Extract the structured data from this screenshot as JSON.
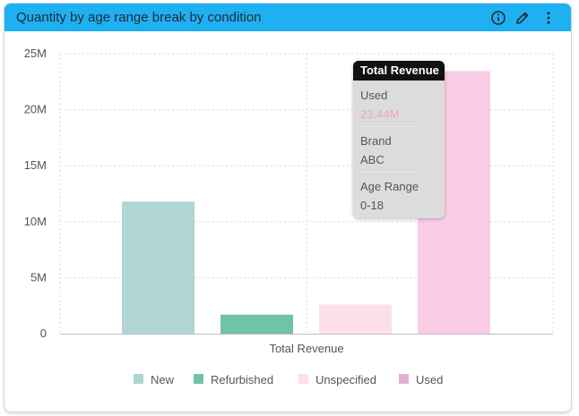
{
  "widget": {
    "title": "Quantity by age range break by condition",
    "icons": [
      "info-icon",
      "pencil-icon",
      "more-vertical-icon"
    ]
  },
  "chart_data": {
    "type": "bar",
    "title": "Quantity by age range break by condition",
    "categories": [
      "Total Revenue"
    ],
    "xlabel": "",
    "ylabel": "",
    "ylim": [
      0,
      25000000
    ],
    "y_ticks": [
      0,
      5000000,
      10000000,
      15000000,
      20000000,
      25000000
    ],
    "y_tick_labels": [
      "0",
      "5M",
      "10M",
      "15M",
      "20M",
      "25M"
    ],
    "grid": true,
    "legend_position": "bottom",
    "series": [
      {
        "name": "New",
        "values": [
          11800000
        ],
        "color": "#b1d5d3"
      },
      {
        "name": "Refurbished",
        "values": [
          1700000
        ],
        "color": "#6fc3a6"
      },
      {
        "name": "Unspecified",
        "values": [
          2600000
        ],
        "color": "#fde0e7"
      },
      {
        "name": "Used",
        "values": [
          23440000
        ],
        "color": "#fbcce6"
      }
    ],
    "legend_colors": [
      "#b1d5d3",
      "#6fc3a6",
      "#fde0e7",
      "#e4afd3"
    ]
  },
  "tooltip": {
    "title": "Total Revenue",
    "rows": [
      {
        "label": "Used",
        "value": "23.44M"
      },
      {
        "label": "Brand",
        "value": "ABC"
      },
      {
        "label": "Age Range",
        "value": "0-18"
      }
    ]
  }
}
